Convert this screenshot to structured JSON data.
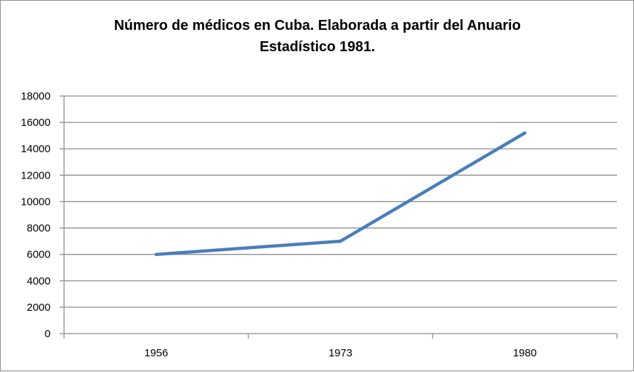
{
  "chart_data": {
    "type": "line",
    "title": "Número de médicos en Cuba. Elaborada  a partir del Anuario Estadístico 1981.",
    "categories": [
      "1956",
      "1973",
      "1980"
    ],
    "series": [
      {
        "values": [
          6000,
          7000,
          15200
        ],
        "color": "#4a7ebb"
      }
    ],
    "ylim": [
      0,
      18000
    ],
    "yticks": [
      "0",
      "2000",
      "4000",
      "6000",
      "8000",
      "10000",
      "12000",
      "14000",
      "16000",
      "18000"
    ],
    "xlabel": "",
    "ylabel": "",
    "grid": true,
    "legend": "none"
  }
}
